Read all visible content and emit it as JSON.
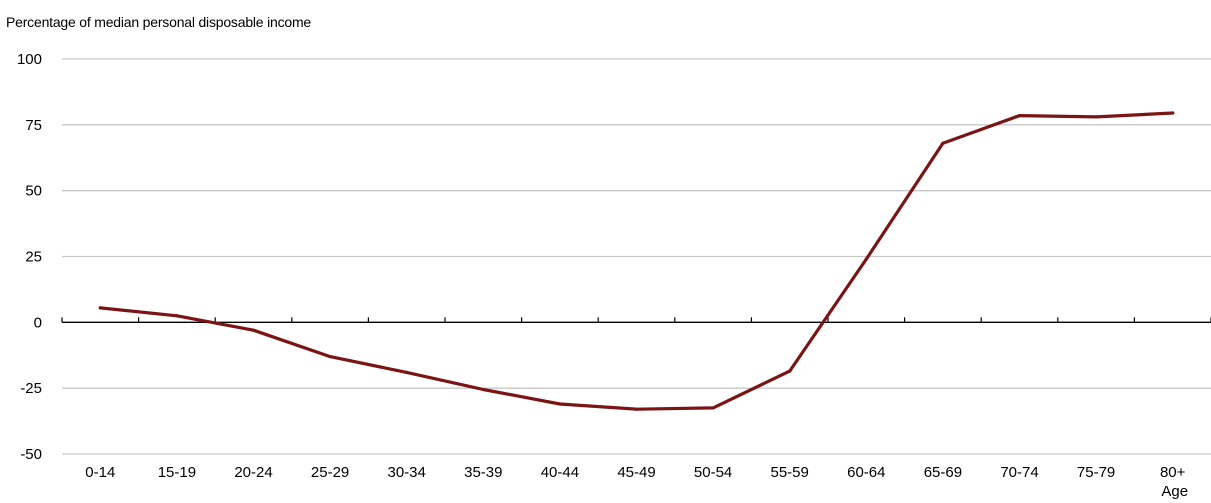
{
  "chart_data": {
    "type": "line",
    "ylabel": "Percentage of median personal disposable income",
    "xlabel": "Age",
    "categories": [
      "0-14",
      "15-19",
      "20-24",
      "25-29",
      "30-34",
      "35-39",
      "40-44",
      "45-49",
      "50-54",
      "55-59",
      "60-64",
      "65-69",
      "70-74",
      "75-79",
      "80+"
    ],
    "series": [
      {
        "values": [
          5.5,
          2.5,
          -3,
          -13,
          -19,
          -25.5,
          -31,
          -33,
          -32.5,
          -18.5,
          24,
          68,
          78.5,
          78,
          79.5
        ],
        "color": "#7b1414"
      }
    ],
    "ylim": [
      -50,
      100
    ],
    "yticks": [
      100,
      75,
      50,
      25,
      0,
      -25,
      -50
    ],
    "grid": true,
    "legend": "none"
  }
}
